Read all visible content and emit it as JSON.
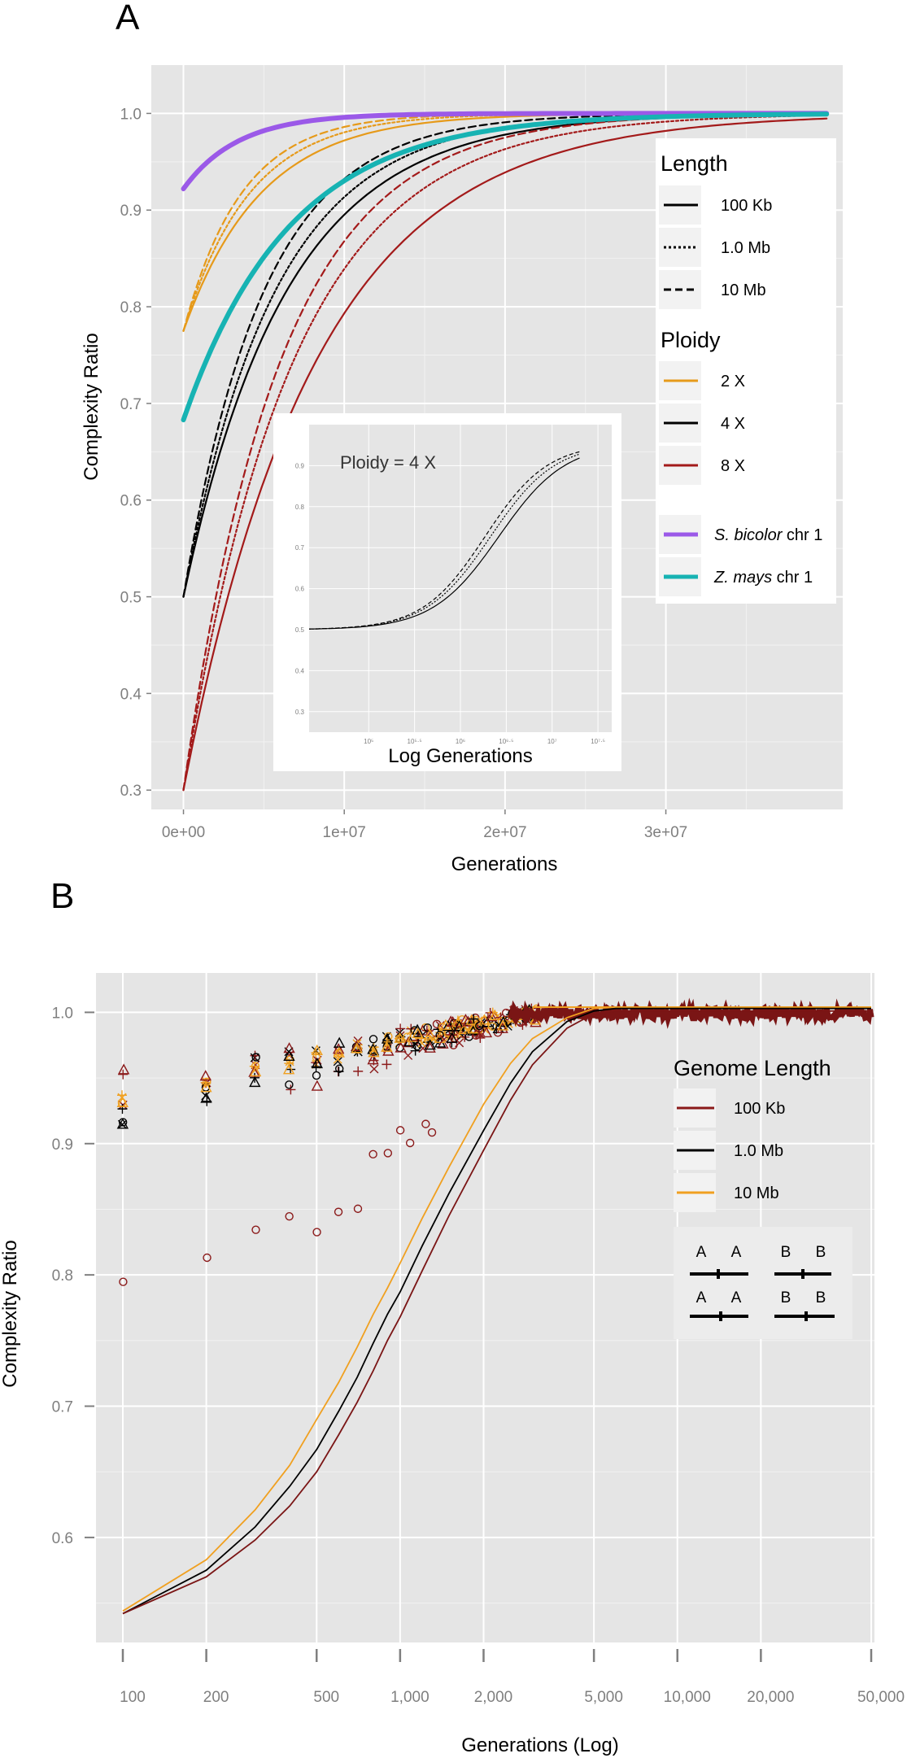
{
  "chart_data": [
    {
      "type": "line",
      "panel": "A",
      "xlabel": "Generations",
      "ylabel": "Complexity Ratio",
      "xlim": [
        -2000000,
        41000000
      ],
      "ylim": [
        0.28,
        1.05
      ],
      "x_ticks": [
        0,
        10000000,
        20000000,
        30000000
      ],
      "x_tick_labels": [
        "0e+00",
        "1e+07",
        "2e+07",
        "3e+07"
      ],
      "y_ticks": [
        0.3,
        0.4,
        0.5,
        0.6,
        0.7,
        0.8,
        0.9,
        1.0
      ],
      "y_tick_labels": [
        "0.3",
        "0.4",
        "0.5",
        "0.6",
        "0.7",
        "0.8",
        "0.9",
        "1.0"
      ],
      "series": [
        {
          "name": "2 X, 10 Mb",
          "color": "#e69a1a",
          "dash": "dashed",
          "width": 2.2,
          "start": 0.775,
          "tau": 3600000
        },
        {
          "name": "2 X, 1.0 Mb",
          "color": "#e69a1a",
          "dash": "dotted",
          "width": 2.2,
          "start": 0.775,
          "tau": 4100000
        },
        {
          "name": "2 X, 100 Kb",
          "color": "#e69a1a",
          "dash": "solid",
          "width": 2.2,
          "start": 0.775,
          "tau": 4800000
        },
        {
          "name": "4 X, 10 Mb",
          "color": "#000000",
          "dash": "dashed",
          "width": 2.2,
          "start": 0.5,
          "tau": 5000000
        },
        {
          "name": "4 X, 1.0 Mb",
          "color": "#000000",
          "dash": "dotted",
          "width": 2.2,
          "start": 0.5,
          "tau": 5700000
        },
        {
          "name": "4 X, 100 Kb",
          "color": "#000000",
          "dash": "solid",
          "width": 2.2,
          "start": 0.5,
          "tau": 6400000
        },
        {
          "name": "8 X, 10 Mb",
          "color": "#a31a1a",
          "dash": "dashed",
          "width": 2.2,
          "start": 0.3,
          "tau": 6000000
        },
        {
          "name": "8 X, 1.0 Mb",
          "color": "#a31a1a",
          "dash": "dotted",
          "width": 2.2,
          "start": 0.3,
          "tau": 6800000
        },
        {
          "name": "8 X, 100 Kb",
          "color": "#a31a1a",
          "dash": "solid",
          "width": 2.2,
          "start": 0.3,
          "tau": 8200000
        },
        {
          "name": "S. bicolor chr 1",
          "color": "#9b59e8",
          "dash": "solid",
          "width": 6,
          "start": 0.922,
          "tau": 3400000
        },
        {
          "name": "Z. mays chr 1",
          "color": "#17b3b3",
          "dash": "solid",
          "width": 6,
          "start": 0.683,
          "tau": 6600000
        }
      ],
      "legend": {
        "length_title": "Length",
        "length_items": [
          "100 Kb",
          "1.0 Mb",
          "10 Mb"
        ],
        "ploidy_title": "Ploidy",
        "ploidy_items": [
          "2 X",
          "4 X",
          "8 X"
        ],
        "species_items": [
          {
            "italic": "S. bicolor",
            "suffix": " chr 1"
          },
          {
            "italic": "Z. mays",
            "suffix": " chr 1"
          }
        ]
      },
      "inset": {
        "title": "Ploidy = 4 X",
        "xlabel": "Log Generations",
        "x_tick_labels": [
          "10⁵",
          "10⁵·⁵",
          "10⁶",
          "10⁶·⁵",
          "10⁷",
          "10⁷·⁵"
        ],
        "y_tick_labels": [
          "0.3",
          "0.4",
          "0.5",
          "0.6",
          "0.7",
          "0.8",
          "0.9"
        ]
      }
    },
    {
      "type": "scatter",
      "panel": "B",
      "xlabel": "Generations (Log)",
      "ylabel": "Complexity Ratio",
      "xscale": "log",
      "ylim": [
        0.52,
        1.03
      ],
      "x_ticks": [
        100,
        200,
        500,
        1000,
        2000,
        5000,
        10000,
        20000,
        50000
      ],
      "x_tick_labels": [
        "100",
        "200",
        "500",
        "1,000",
        "2,000",
        "5,000",
        "10,000",
        "20,000",
        "50,000"
      ],
      "y_ticks": [
        0.6,
        0.7,
        0.8,
        0.9,
        1.0
      ],
      "y_tick_labels": [
        "0.6",
        "0.7",
        "0.8",
        "0.9",
        "1.0"
      ],
      "series": [
        {
          "name": "10 Mb",
          "color": "#f0a020",
          "x": [
            100,
            200,
            300,
            400,
            500,
            600,
            700,
            800,
            900,
            1000,
            1200,
            1500,
            2000,
            2500,
            3000,
            4000,
            5000,
            6000
          ],
          "y": [
            0.544,
            0.583,
            0.621,
            0.655,
            0.69,
            0.718,
            0.745,
            0.77,
            0.79,
            0.809,
            0.843,
            0.882,
            0.93,
            0.961,
            0.98,
            0.996,
            1.003,
            1.004
          ]
        },
        {
          "name": "1.0 Mb",
          "color": "#000000",
          "x": [
            100,
            200,
            300,
            400,
            500,
            600,
            700,
            800,
            900,
            1000,
            1200,
            1500,
            2000,
            2500,
            3000,
            4000,
            5000,
            6000
          ],
          "y": [
            0.542,
            0.575,
            0.608,
            0.639,
            0.667,
            0.696,
            0.722,
            0.748,
            0.77,
            0.787,
            0.822,
            0.862,
            0.91,
            0.946,
            0.97,
            0.993,
            1.001,
            1.003
          ]
        },
        {
          "name": "100 Kb",
          "color": "#7a1515",
          "x": [
            100,
            200,
            300,
            400,
            500,
            600,
            700,
            800,
            900,
            1000,
            1200,
            1500,
            2000,
            2500,
            3000,
            4000,
            5000,
            6000
          ],
          "y": [
            0.542,
            0.57,
            0.598,
            0.624,
            0.65,
            0.678,
            0.703,
            0.727,
            0.75,
            0.768,
            0.803,
            0.845,
            0.895,
            0.933,
            0.96,
            0.988,
            0.999,
            1.001
          ]
        }
      ],
      "legend": {
        "title": "Genome Length",
        "items": [
          "100 Kb",
          "1.0 Mb",
          "10 Mb"
        ]
      },
      "chrom_labels": [
        "A",
        "A",
        "B",
        "B",
        "A",
        "A",
        "B",
        "B"
      ]
    }
  ],
  "panel_labels": {
    "a": "A",
    "b": "B"
  },
  "colors": {
    "panel_bg": "#e5e5e5",
    "grid": "#ffffff",
    "orange": "#e69a1a",
    "black": "#000000",
    "red": "#a31a1a",
    "purple": "#9b59e8",
    "teal": "#17b3b3"
  }
}
